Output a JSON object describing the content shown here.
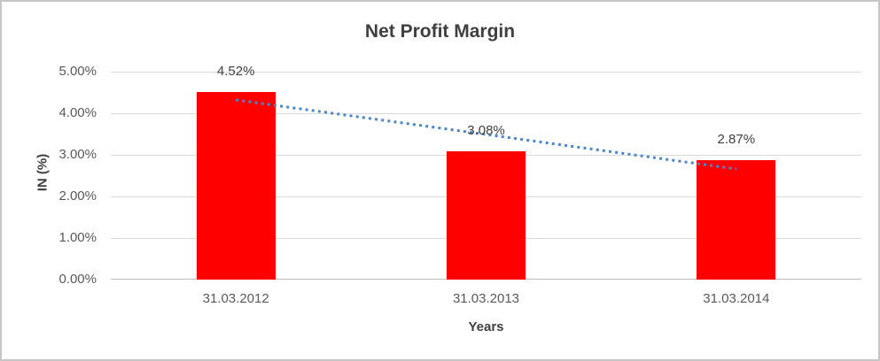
{
  "chart_data": {
    "type": "bar",
    "title": "Net Profit Margin",
    "categories": [
      "31.03.2012",
      "31.03.2013",
      "31.03.2014"
    ],
    "values": [
      4.52,
      3.08,
      2.87
    ],
    "data_labels": [
      "4.52%",
      "3.08%",
      "2.87%"
    ],
    "xlabel": "Years",
    "ylabel": "IN (%)",
    "ylim": [
      0,
      5
    ],
    "ytick_step": 1,
    "ytick_labels": [
      "0.00%",
      "1.00%",
      "2.00%",
      "3.00%",
      "4.00%",
      "5.00%"
    ],
    "grid": true,
    "legend": "none",
    "bar_color": "#ff0000",
    "trendline": {
      "type": "linear",
      "style": "dotted",
      "color": "#4a86c8",
      "start_value": 4.32,
      "end_value": 2.66
    }
  },
  "colors": {
    "title_text": "#3f3f3f",
    "tick_text": "#595959",
    "data_label_text": "#404040",
    "gridline": "#d9d9d9",
    "axis_line": "#bfbfbf",
    "frame_border": "#c6c6c6",
    "background": "#ffffff"
  }
}
